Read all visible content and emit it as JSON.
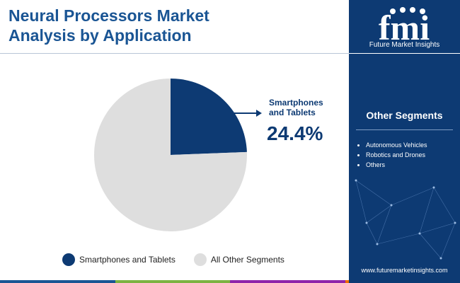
{
  "header": {
    "title_line1": "Neural Processors Market",
    "title_line2": "Analysis by Application"
  },
  "chart_data": {
    "type": "pie",
    "slices": [
      {
        "name": "Smartphones and Tablets",
        "value": 24.4,
        "color": "#0d3a73"
      },
      {
        "name": "All Other Segments",
        "value": 75.6,
        "color": "#dedede"
      }
    ],
    "callout": {
      "label_line1": "Smartphones",
      "label_line2": "and Tablets",
      "value_text": "24.4%"
    },
    "legend": {
      "placement": "bottom",
      "entries": [
        {
          "name": "Smartphones and Tablets",
          "color": "#0d3a73"
        },
        {
          "name": "All Other Segments",
          "color": "#dedede"
        }
      ]
    }
  },
  "sidebar": {
    "logo_text": "fmi",
    "brand": "Future Market Insights",
    "segments_title": "Other Segments",
    "segments": [
      "Autonomous Vehicles",
      "Robotics and Drones",
      "Others"
    ],
    "url": "www.futuremarketinsights.com"
  },
  "colors": {
    "title": "#1a5594",
    "panel": "#0d3a73",
    "bottom_bar": [
      "#1a5594",
      "#7cb342",
      "#8e24aa",
      "#ef6c00"
    ]
  },
  "icons": [
    "arrow-right-icon",
    "fmi-logo-icon",
    "network-graphic"
  ]
}
